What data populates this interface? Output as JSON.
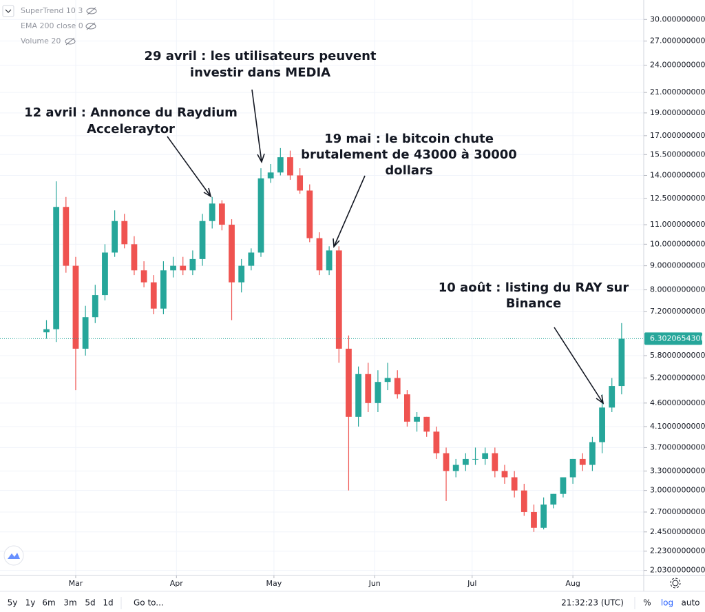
{
  "chart_data": {
    "type": "candlestick",
    "x": [
      -9,
      -6,
      -3,
      0,
      3,
      6,
      9,
      12,
      15,
      18,
      21,
      24,
      27,
      30,
      33,
      36,
      39,
      42,
      45,
      48,
      51,
      54,
      57,
      60,
      63,
      66,
      69,
      72,
      75,
      78,
      81,
      84,
      87,
      90,
      93,
      96,
      99,
      102,
      105,
      108,
      111,
      114,
      117,
      120,
      123,
      126,
      129,
      132,
      135,
      138,
      141,
      144,
      147,
      150,
      153,
      156,
      159,
      162,
      165,
      168
    ],
    "open": [
      6.5,
      6.6,
      12.0,
      9.0,
      6.0,
      7.0,
      7.8,
      9.6,
      11.2,
      10.0,
      8.8,
      8.3,
      7.3,
      8.8,
      9.0,
      8.8,
      9.3,
      11.2,
      12.2,
      11.0,
      8.3,
      9.0,
      9.6,
      13.8,
      14.2,
      15.3,
      14.0,
      13.0,
      10.3,
      8.8,
      9.7,
      6.0,
      4.3,
      5.3,
      4.6,
      5.1,
      5.2,
      4.8,
      4.2,
      4.3,
      4.0,
      3.6,
      3.3,
      3.4,
      3.5,
      3.5,
      3.6,
      3.3,
      3.2,
      3.0,
      2.7,
      2.5,
      2.8,
      2.95,
      3.2,
      3.5,
      3.4,
      3.8,
      4.5,
      5.0
    ],
    "high": [
      6.9,
      13.6,
      12.6,
      9.4,
      7.4,
      8.2,
      10.0,
      11.8,
      11.6,
      10.4,
      9.2,
      8.6,
      9.2,
      9.4,
      9.4,
      9.7,
      11.6,
      12.6,
      12.4,
      11.3,
      9.3,
      9.8,
      14.5,
      14.8,
      16.0,
      15.8,
      14.5,
      13.4,
      10.6,
      9.9,
      9.9,
      6.4,
      5.5,
      5.6,
      5.4,
      5.6,
      5.4,
      4.9,
      4.4,
      4.3,
      4.1,
      3.7,
      3.5,
      3.6,
      3.7,
      3.7,
      3.7,
      3.4,
      3.3,
      3.1,
      2.8,
      2.9,
      2.95,
      3.2,
      3.5,
      3.6,
      3.9,
      4.8,
      5.2,
      6.8
    ],
    "low": [
      6.3,
      6.2,
      8.7,
      4.9,
      5.8,
      6.8,
      7.6,
      9.4,
      9.8,
      8.6,
      8.1,
      7.1,
      7.1,
      8.5,
      8.6,
      8.6,
      9.0,
      10.8,
      10.7,
      6.9,
      7.9,
      8.8,
      9.4,
      13.5,
      14.0,
      13.7,
      12.8,
      10.1,
      8.6,
      8.6,
      5.6,
      3.0,
      4.1,
      4.4,
      4.4,
      4.9,
      4.7,
      4.1,
      4.0,
      3.9,
      3.5,
      2.85,
      3.2,
      3.3,
      3.4,
      3.4,
      3.2,
      3.1,
      2.9,
      2.65,
      2.45,
      2.48,
      2.75,
      2.9,
      3.1,
      3.3,
      3.3,
      3.6,
      4.4,
      4.8
    ],
    "close": [
      6.6,
      12.0,
      9.0,
      6.0,
      7.0,
      7.8,
      9.6,
      11.2,
      10.0,
      8.8,
      8.3,
      7.3,
      8.8,
      9.0,
      8.8,
      9.3,
      11.2,
      12.2,
      11.0,
      8.3,
      9.0,
      9.6,
      13.8,
      14.2,
      15.3,
      14.0,
      13.0,
      10.3,
      8.8,
      9.7,
      6.0,
      4.3,
      5.3,
      4.6,
      5.1,
      5.2,
      4.8,
      4.2,
      4.3,
      4.0,
      3.6,
      3.3,
      3.4,
      3.5,
      3.5,
      3.6,
      3.3,
      3.2,
      3.0,
      2.7,
      2.5,
      2.8,
      2.95,
      3.2,
      3.5,
      3.4,
      3.8,
      4.5,
      5.0,
      6.3
    ],
    "up_color": "#26a69a",
    "down_color": "#ef5350",
    "log_scale": true,
    "grid": true,
    "xlim": [
      -23.3,
      174.8
    ],
    "xticks": [
      {
        "value": 0,
        "label": "Mar"
      },
      {
        "value": 31,
        "label": "Apr"
      },
      {
        "value": 61,
        "label": "May"
      },
      {
        "value": 92,
        "label": "Jun"
      },
      {
        "value": 122,
        "label": "Jul"
      },
      {
        "value": 153,
        "label": "Aug"
      }
    ],
    "ylim": [
      1.98,
      33
    ],
    "yticks": [
      {
        "value": 30,
        "label": "30.0000000000"
      },
      {
        "value": 27,
        "label": "27.0000000000"
      },
      {
        "value": 24,
        "label": "24.0000000000"
      },
      {
        "value": 21,
        "label": "21.0000000000"
      },
      {
        "value": 19,
        "label": "19.0000000000"
      },
      {
        "value": 17,
        "label": "17.0000000000"
      },
      {
        "value": 15.5,
        "label": "15.5000000000"
      },
      {
        "value": 14,
        "label": "14.0000000000"
      },
      {
        "value": 12.5,
        "label": "12.5000000000"
      },
      {
        "value": 11,
        "label": "11.0000000000"
      },
      {
        "value": 10,
        "label": "10.0000000000"
      },
      {
        "value": 9,
        "label": "9.0000000000"
      },
      {
        "value": 8,
        "label": "8.0000000000"
      },
      {
        "value": 7.2,
        "label": "7.2000000000"
      },
      {
        "value": 5.8,
        "label": "5.8000000000"
      },
      {
        "value": 5.2,
        "label": "5.2000000000"
      },
      {
        "value": 4.6,
        "label": "4.6000000000"
      },
      {
        "value": 4.1,
        "label": "4.1000000000"
      },
      {
        "value": 3.7,
        "label": "3.7000000000"
      },
      {
        "value": 3.3,
        "label": "3.3000000000"
      },
      {
        "value": 3,
        "label": "3.0000000000"
      },
      {
        "value": 2.7,
        "label": "2.7000000000"
      },
      {
        "value": 2.45,
        "label": "2.4500000000"
      },
      {
        "value": 2.23,
        "label": "2.2300000000"
      },
      {
        "value": 2.03,
        "label": "2.0300000000"
      }
    ],
    "last_price": {
      "value": 6.30206543,
      "label": "6.3020654300"
    },
    "annotations": [
      [
        "29 avril : les utilisateurs peuvent",
        "investir dans MEDIA"
      ],
      [
        "12 avril : Annonce du Raydium",
        "Acceleraytor"
      ],
      [
        "19 mai : le bitcoin chute",
        "brutalement de 43000 à 30000",
        "dollars"
      ],
      [
        "10 août : listing du RAY sur",
        "Binance"
      ]
    ]
  },
  "ui": {
    "indicators": [
      "SuperTrend 10 3",
      "EMA 200 close 0",
      "Volume 20"
    ],
    "ranges": [
      "5y",
      "1y",
      "6m",
      "3m",
      "5d",
      "1d"
    ],
    "goto": "Go to...",
    "clock": "21:32:23 (UTC)",
    "scale_buttons": [
      "%",
      "log",
      "auto"
    ]
  }
}
